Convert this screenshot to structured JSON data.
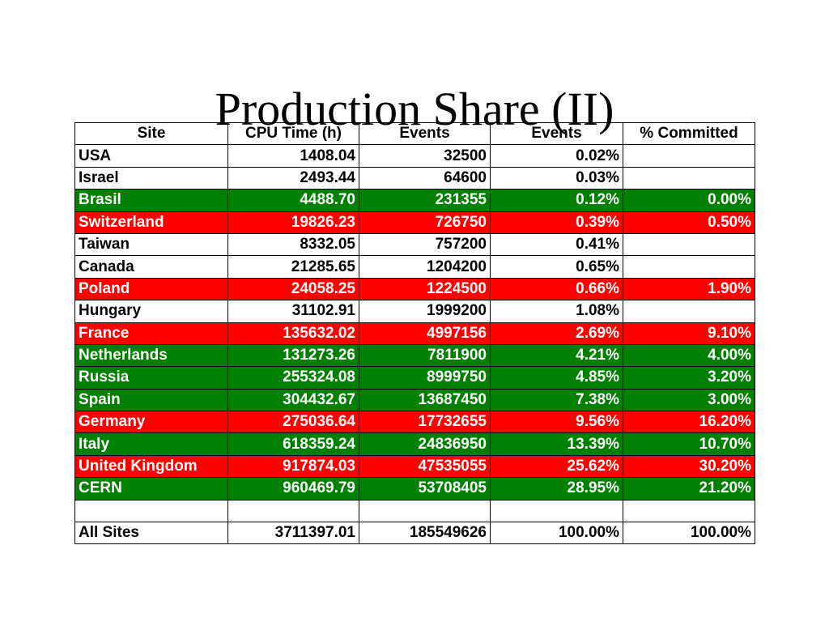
{
  "title": "Production Share (II)",
  "colors": {
    "green": "#008000",
    "red": "#ff0000",
    "white": "#ffffff"
  },
  "table": {
    "headers": [
      "Site",
      "CPU Time (h)",
      "Events",
      "Events",
      "% Committed"
    ],
    "rows": [
      {
        "site": "USA",
        "cpu": "1408.04",
        "events": "32500",
        "events_pct": "0.02%",
        "committed": "",
        "color": "white"
      },
      {
        "site": "Israel",
        "cpu": "2493.44",
        "events": "64600",
        "events_pct": "0.03%",
        "committed": "",
        "color": "white"
      },
      {
        "site": "Brasil",
        "cpu": "4488.70",
        "events": "231355",
        "events_pct": "0.12%",
        "committed": "0.00%",
        "color": "green"
      },
      {
        "site": "Switzerland",
        "cpu": "19826.23",
        "events": "726750",
        "events_pct": "0.39%",
        "committed": "0.50%",
        "color": "red"
      },
      {
        "site": "Taiwan",
        "cpu": "8332.05",
        "events": "757200",
        "events_pct": "0.41%",
        "committed": "",
        "color": "white"
      },
      {
        "site": "Canada",
        "cpu": "21285.65",
        "events": "1204200",
        "events_pct": "0.65%",
        "committed": "",
        "color": "white"
      },
      {
        "site": "Poland",
        "cpu": "24058.25",
        "events": "1224500",
        "events_pct": "0.66%",
        "committed": "1.90%",
        "color": "red"
      },
      {
        "site": "Hungary",
        "cpu": "31102.91",
        "events": "1999200",
        "events_pct": "1.08%",
        "committed": "",
        "color": "white"
      },
      {
        "site": "France",
        "cpu": "135632.02",
        "events": "4997156",
        "events_pct": "2.69%",
        "committed": "9.10%",
        "color": "red"
      },
      {
        "site": "Netherlands",
        "cpu": "131273.26",
        "events": "7811900",
        "events_pct": "4.21%",
        "committed": "4.00%",
        "color": "green"
      },
      {
        "site": "Russia",
        "cpu": "255324.08",
        "events": "8999750",
        "events_pct": "4.85%",
        "committed": "3.20%",
        "color": "green"
      },
      {
        "site": "Spain",
        "cpu": "304432.67",
        "events": "13687450",
        "events_pct": "7.38%",
        "committed": "3.00%",
        "color": "green"
      },
      {
        "site": "Germany",
        "cpu": "275036.64",
        "events": "17732655",
        "events_pct": "9.56%",
        "committed": "16.20%",
        "color": "red"
      },
      {
        "site": "Italy",
        "cpu": "618359.24",
        "events": "24836950",
        "events_pct": "13.39%",
        "committed": "10.70%",
        "color": "green"
      },
      {
        "site": "United Kingdom",
        "cpu": "917874.03",
        "events": "47535055",
        "events_pct": "25.62%",
        "committed": "30.20%",
        "color": "red"
      },
      {
        "site": "CERN",
        "cpu": "960469.79",
        "events": "53708405",
        "events_pct": "28.95%",
        "committed": "21.20%",
        "color": "green"
      }
    ],
    "total": {
      "site": "All Sites",
      "cpu": "3711397.01",
      "events": "185549626",
      "events_pct": "100.00%",
      "committed": "100.00%"
    }
  }
}
